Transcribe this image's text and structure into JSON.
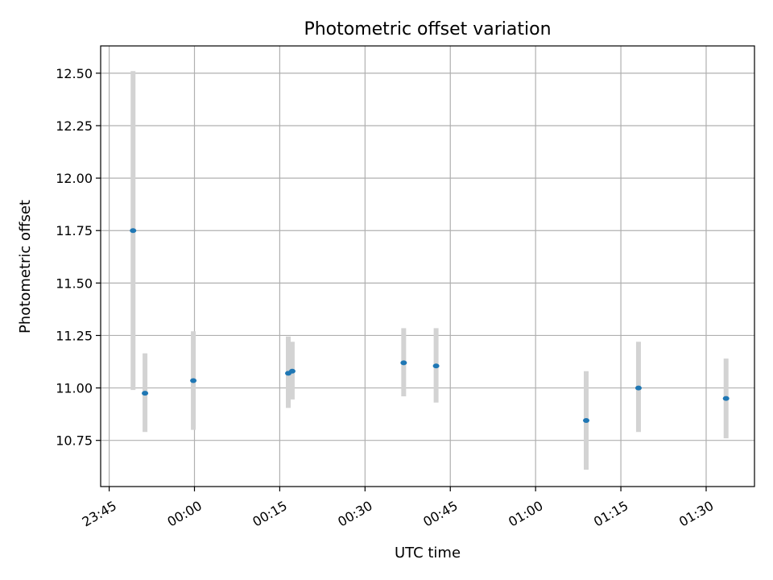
{
  "chart_data": {
    "type": "scatter",
    "title": "Photometric offset variation",
    "xlabel": "UTC time",
    "ylabel": "Photometric offset",
    "grid": true,
    "x_unit": "minutes after 23:45 UTC",
    "xlim": [
      -1.5,
      113.5
    ],
    "ylim": [
      10.53,
      12.63
    ],
    "x_ticks": [
      {
        "value": 0,
        "label": "23:45"
      },
      {
        "value": 15,
        "label": "00:00"
      },
      {
        "value": 30,
        "label": "00:15"
      },
      {
        "value": 45,
        "label": "00:30"
      },
      {
        "value": 60,
        "label": "00:45"
      },
      {
        "value": 75,
        "label": "01:00"
      },
      {
        "value": 90,
        "label": "01:15"
      },
      {
        "value": 105,
        "label": "01:30"
      }
    ],
    "y_ticks": [
      {
        "value": 10.75,
        "label": "10.75"
      },
      {
        "value": 11.0,
        "label": "11.00"
      },
      {
        "value": 11.25,
        "label": "11.25"
      },
      {
        "value": 11.5,
        "label": "11.50"
      },
      {
        "value": 11.75,
        "label": "11.75"
      },
      {
        "value": 12.0,
        "label": "12.00"
      },
      {
        "value": 12.25,
        "label": "12.25"
      },
      {
        "value": 12.5,
        "label": "12.50"
      }
    ],
    "points": [
      {
        "x": 4.2,
        "y": 11.75,
        "ylow": 10.99,
        "yhigh": 12.51
      },
      {
        "x": 6.3,
        "y": 10.975,
        "ylow": 10.79,
        "yhigh": 11.165
      },
      {
        "x": 14.8,
        "y": 11.035,
        "ylow": 10.8,
        "yhigh": 11.27
      },
      {
        "x": 31.5,
        "y": 11.07,
        "ylow": 10.905,
        "yhigh": 11.245
      },
      {
        "x": 32.2,
        "y": 11.08,
        "ylow": 10.945,
        "yhigh": 11.22
      },
      {
        "x": 51.8,
        "y": 11.12,
        "ylow": 10.96,
        "yhigh": 11.285
      },
      {
        "x": 57.5,
        "y": 11.105,
        "ylow": 10.93,
        "yhigh": 11.285
      },
      {
        "x": 83.9,
        "y": 10.845,
        "ylow": 10.61,
        "yhigh": 11.08
      },
      {
        "x": 93.1,
        "y": 11.0,
        "ylow": 10.79,
        "yhigh": 11.22
      },
      {
        "x": 108.5,
        "y": 10.95,
        "ylow": 10.76,
        "yhigh": 11.14
      }
    ],
    "colors": {
      "marker": "#1f77b4",
      "errorbar": "#d3d3d3"
    }
  }
}
